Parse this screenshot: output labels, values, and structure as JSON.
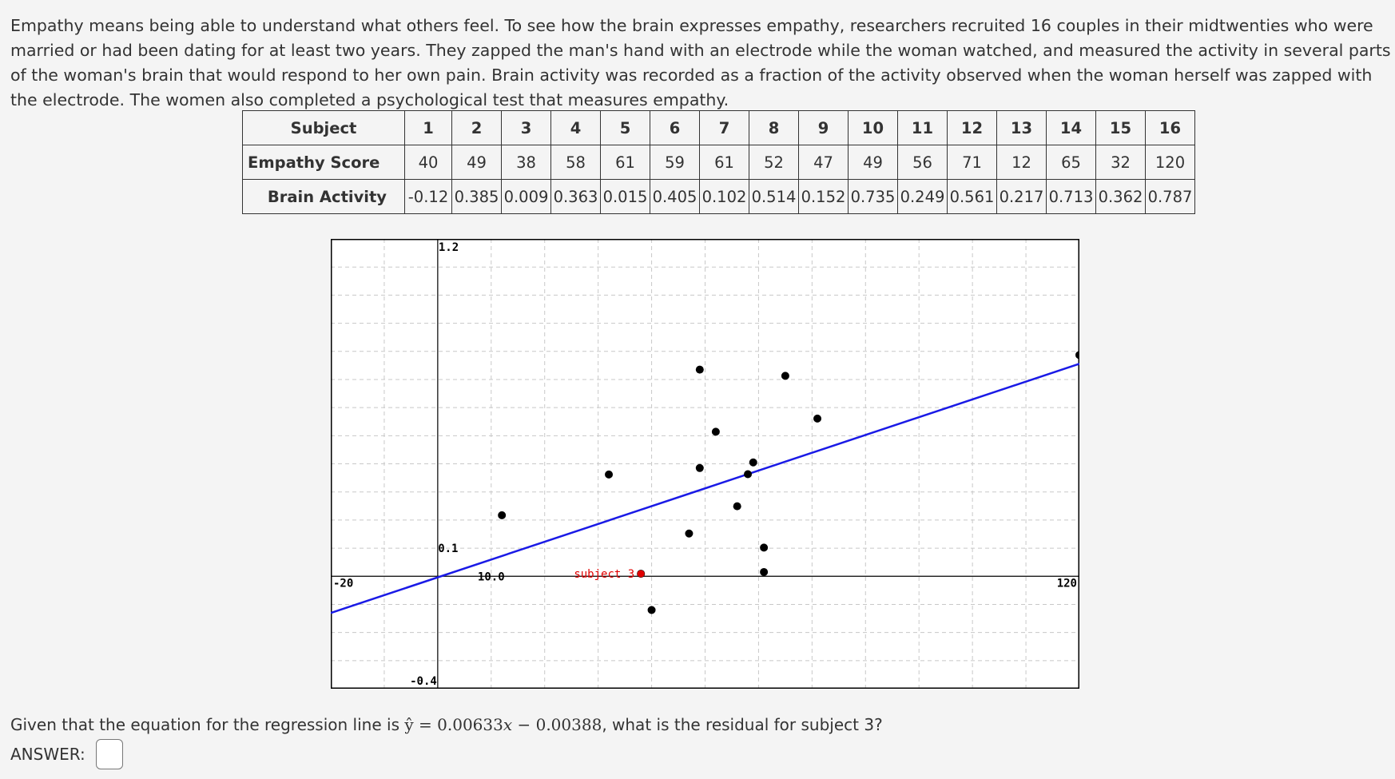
{
  "intro": "Empathy means being able to understand what others feel. To see how the brain expresses empathy, researchers recruited 16 couples in their midtwenties who were married or had been dating for at least two years. They zapped the man's hand with an electrode while the woman watched, and measured the activity in several parts of the woman's brain that would respond to her own pain. Brain activity was recorded as a fraction of the activity observed when the woman herself was zapped with the electrode. The women also completed a psychological test that measures empathy.",
  "table": {
    "subject_label": "Subject",
    "empathy_label": "Empathy Score",
    "brain_label": "Brain Activity",
    "subjects": [
      "1",
      "2",
      "3",
      "4",
      "5",
      "6",
      "7",
      "8",
      "9",
      "10",
      "11",
      "12",
      "13",
      "14",
      "15",
      "16"
    ],
    "empathy": [
      "40",
      "49",
      "38",
      "58",
      "61",
      "59",
      "61",
      "52",
      "47",
      "49",
      "56",
      "71",
      "12",
      "65",
      "32",
      "120"
    ],
    "brain": [
      "-0.12",
      "0.385",
      "0.009",
      "0.363",
      "0.015",
      "0.405",
      "0.102",
      "0.514",
      "0.152",
      "0.735",
      "0.249",
      "0.561",
      "0.217",
      "0.713",
      "0.362",
      "0.787"
    ]
  },
  "chart_data": {
    "type": "scatter",
    "xlim": [
      -20,
      120
    ],
    "ylim": [
      -0.4,
      1.2
    ],
    "x_grid_step": 10,
    "y_grid_step": 0.1,
    "grid": true,
    "axis_labels": {
      "x_min": "-20",
      "x_max": "120",
      "x_tick": "10.0",
      "y_max": "1.2",
      "y_min": "-0.4",
      "y_tick": "0.1"
    },
    "points": [
      {
        "x": 40,
        "y": -0.12
      },
      {
        "x": 49,
        "y": 0.385
      },
      {
        "x": 38,
        "y": 0.009
      },
      {
        "x": 58,
        "y": 0.363
      },
      {
        "x": 61,
        "y": 0.015
      },
      {
        "x": 59,
        "y": 0.405
      },
      {
        "x": 61,
        "y": 0.102
      },
      {
        "x": 52,
        "y": 0.514
      },
      {
        "x": 47,
        "y": 0.152
      },
      {
        "x": 49,
        "y": 0.735
      },
      {
        "x": 56,
        "y": 0.249
      },
      {
        "x": 71,
        "y": 0.561
      },
      {
        "x": 12,
        "y": 0.217
      },
      {
        "x": 65,
        "y": 0.713
      },
      {
        "x": 32,
        "y": 0.362
      },
      {
        "x": 120,
        "y": 0.787
      }
    ],
    "highlight": {
      "label": "subject 3",
      "x": 38,
      "y": 0.009,
      "color": "#e00000"
    },
    "regression": {
      "slope": 0.00633,
      "intercept": -0.00388,
      "color": "#1a1ae6"
    }
  },
  "question": {
    "prefix": "Given that the equation for the regression line is ",
    "yhat": "ŷ",
    "equals": " = ",
    "equation": "0.00633𝑥 − 0.00388",
    "suffix": ", what is the residual for subject 3?"
  },
  "answer_label": "ANSWER:"
}
